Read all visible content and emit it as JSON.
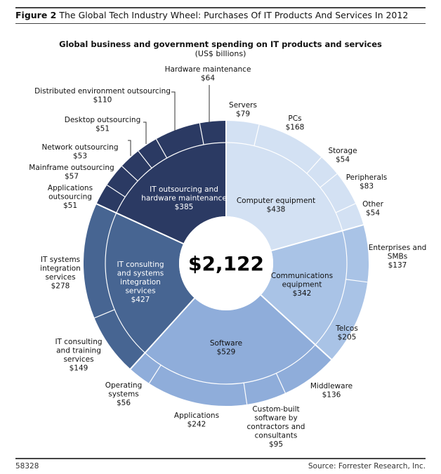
{
  "figure": {
    "label": "Figure 2",
    "title": "The Global Tech Industry Wheel: Purchases Of IT Products And Services In 2012"
  },
  "footer": {
    "id": "58328",
    "source": "Source: Forrester Research, Inc."
  },
  "chart_data": {
    "type": "sunburst",
    "title": "Global business and government spending on IT products and services",
    "subtitle": "(US$ billions)",
    "total_label": "$2,122",
    "total": 2122,
    "colors": {
      "computer": "#d3e1f3",
      "communications": "#a9c3e6",
      "software": "#8fadda",
      "consulting": "#476592",
      "outsourcing": "#2b3a63",
      "divider": "#ffffff",
      "leader": "#333333"
    },
    "categories": [
      {
        "name": "Computer equipment",
        "value": 438,
        "label_lines": [
          "Computer equipment",
          "$438"
        ],
        "color_key": "computer",
        "text_color": "#111111",
        "children": [
          {
            "name": "Servers",
            "value": 79,
            "label_lines": [
              "Servers",
              "$79"
            ]
          },
          {
            "name": "PCs",
            "value": 168,
            "label_lines": [
              "PCs",
              "$168"
            ]
          },
          {
            "name": "Storage",
            "value": 54,
            "label_lines": [
              "Storage",
              "$54"
            ]
          },
          {
            "name": "Peripherals",
            "value": 83,
            "label_lines": [
              "Peripherals",
              "$83"
            ]
          },
          {
            "name": "Other",
            "value": 54,
            "label_lines": [
              "Other",
              "$54"
            ]
          }
        ]
      },
      {
        "name": "Communications equipment",
        "value": 342,
        "label_lines": [
          "Communications",
          "equipment",
          "$342"
        ],
        "color_key": "communications",
        "text_color": "#111111",
        "children": [
          {
            "name": "Enterprises and SMBs",
            "value": 137,
            "label_lines": [
              "Enterprises and",
              "SMBs",
              "$137"
            ]
          },
          {
            "name": "Telcos",
            "value": 205,
            "label_lines": [
              "Telcos",
              "$205"
            ]
          }
        ]
      },
      {
        "name": "Software",
        "value": 529,
        "label_lines": [
          "Software",
          "$529"
        ],
        "color_key": "software",
        "text_color": "#111111",
        "children": [
          {
            "name": "Middleware",
            "value": 136,
            "label_lines": [
              "Middleware",
              "$136"
            ]
          },
          {
            "name": "Custom-built software by contractors and consultants",
            "value": 95,
            "label_lines": [
              "Custom-built",
              "software by",
              "contractors and",
              "consultants",
              "$95"
            ]
          },
          {
            "name": "Applications",
            "value": 242,
            "label_lines": [
              "Applications",
              "$242"
            ]
          },
          {
            "name": "Operating systems",
            "value": 56,
            "label_lines": [
              "Operating",
              "systems",
              "$56"
            ]
          }
        ]
      },
      {
        "name": "IT consulting and systems integration services",
        "value": 427,
        "label_lines": [
          "IT consulting",
          "and systems",
          "integration",
          "services",
          "$427"
        ],
        "color_key": "consulting",
        "text_color": "#ffffff",
        "children": [
          {
            "name": "IT consulting and training services",
            "value": 149,
            "label_lines": [
              "IT consulting",
              "and training",
              "services",
              "$149"
            ]
          },
          {
            "name": "IT systems integration services",
            "value": 278,
            "label_lines": [
              "IT systems",
              "integration",
              "services",
              "$278"
            ]
          }
        ]
      },
      {
        "name": "IT outsourcing and hardware maintenance",
        "value": 385,
        "label_lines": [
          "IT outsourcing and",
          "hardware maintenance",
          "$385"
        ],
        "color_key": "outsourcing",
        "text_color": "#ffffff",
        "children": [
          {
            "name": "Applications outsourcing",
            "value": 51,
            "label_lines": [
              "Applications",
              "outsourcing",
              "$51"
            ]
          },
          {
            "name": "Mainframe outsourcing",
            "value": 57,
            "label_lines": [
              "Mainframe outsourcing",
              "$57"
            ]
          },
          {
            "name": "Network outsourcing",
            "value": 53,
            "label_lines": [
              "Network outsourcing",
              "$53"
            ]
          },
          {
            "name": "Desktop outsourcing",
            "value": 51,
            "label_lines": [
              "Desktop outsourcing",
              "$51"
            ]
          },
          {
            "name": "Distributed environment outsourcing",
            "value": 110,
            "label_lines": [
              "Distributed environment outsourcing",
              "$110"
            ]
          },
          {
            "name": "Hardware maintenance",
            "value": 64,
            "label_lines": [
              "Hardware maintenance",
              "$64"
            ]
          }
        ]
      }
    ]
  }
}
